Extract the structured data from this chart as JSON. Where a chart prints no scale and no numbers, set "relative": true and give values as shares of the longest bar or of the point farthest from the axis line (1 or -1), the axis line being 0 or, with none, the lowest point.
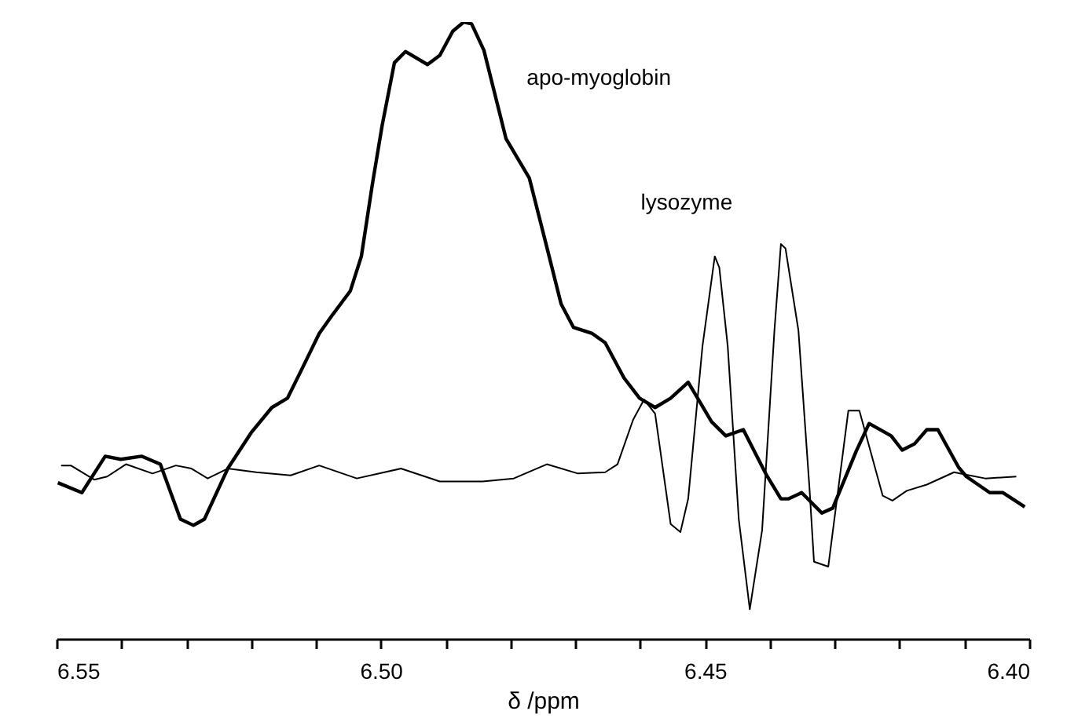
{
  "chart_data": {
    "type": "line",
    "xlabel": "δ /ppm",
    "relative": true,
    "grid": false,
    "xlim": [
      6.55,
      6.4
    ],
    "xticks": [
      {
        "value": 6.55,
        "label": "6.55"
      },
      {
        "value": 6.54,
        "label": null
      },
      {
        "value": 6.53,
        "label": null
      },
      {
        "value": 6.52,
        "label": null
      },
      {
        "value": 6.51,
        "label": null
      },
      {
        "value": 6.5,
        "label": "6.50"
      },
      {
        "value": 6.49,
        "label": null
      },
      {
        "value": 6.48,
        "label": null
      },
      {
        "value": 6.47,
        "label": null
      },
      {
        "value": 6.46,
        "label": null
      },
      {
        "value": 6.45,
        "label": "6.45"
      },
      {
        "value": 6.44,
        "label": null
      },
      {
        "value": 6.43,
        "label": null
      },
      {
        "value": 6.42,
        "label": null
      },
      {
        "value": 6.41,
        "label": null
      },
      {
        "value": 6.4,
        "label": "6.40"
      }
    ],
    "series": [
      {
        "name": "apo-myoglobin",
        "color": "#000000",
        "x": [
          6.5498,
          6.5461,
          6.5425,
          6.5401,
          6.5369,
          6.534,
          6.5309,
          6.5289,
          6.5272,
          6.5236,
          6.52,
          6.5168,
          6.5144,
          6.512,
          6.5095,
          6.5074,
          6.5047,
          6.503,
          6.5013,
          6.4998,
          6.4979,
          6.4962,
          6.4928,
          6.4909,
          6.4889,
          6.4872,
          6.486,
          6.4841,
          6.4807,
          6.4771,
          6.4744,
          6.4722,
          6.4703,
          6.4674,
          6.4654,
          6.4625,
          6.4601,
          6.4577,
          6.4553,
          6.4526,
          6.449,
          6.4468,
          6.4441,
          6.4405,
          6.4383,
          6.4371,
          6.4351,
          6.432,
          6.4303,
          6.4267,
          6.4247,
          6.4213,
          6.4196,
          6.4177,
          6.4158,
          6.4141,
          6.4109,
          6.4097,
          6.4061,
          6.4041,
          6.4007
        ],
        "values": [
          0.253,
          0.237,
          0.296,
          0.291,
          0.296,
          0.283,
          0.194,
          0.184,
          0.194,
          0.276,
          0.334,
          0.375,
          0.39,
          0.441,
          0.495,
          0.526,
          0.564,
          0.62,
          0.737,
          0.832,
          0.934,
          0.952,
          0.931,
          0.946,
          0.985,
          1,
          0.997,
          0.954,
          0.811,
          0.747,
          0.635,
          0.543,
          0.505,
          0.495,
          0.48,
          0.423,
          0.39,
          0.375,
          0.39,
          0.416,
          0.352,
          0.329,
          0.339,
          0.265,
          0.227,
          0.227,
          0.237,
          0.204,
          0.212,
          0.304,
          0.349,
          0.329,
          0.306,
          0.316,
          0.339,
          0.339,
          0.278,
          0.263,
          0.237,
          0.237,
          0.214
        ]
      },
      {
        "name": "lysozyme",
        "color": "#000000",
        "x": [
          6.5493,
          6.5478,
          6.5442,
          6.5422,
          6.5393,
          6.5352,
          6.5316,
          6.5292,
          6.5267,
          6.5236,
          6.5192,
          6.5139,
          6.5095,
          6.5037,
          6.4969,
          6.4909,
          6.4843,
          6.4795,
          6.4744,
          6.4696,
          6.4654,
          6.4635,
          6.4611,
          6.4594,
          6.4577,
          6.4553,
          6.4538,
          6.4526,
          6.4504,
          6.4485,
          6.4478,
          6.4465,
          6.4448,
          6.4431,
          6.4412,
          6.4393,
          6.4383,
          6.4376,
          6.4356,
          6.4339,
          6.4332,
          6.431,
          6.4279,
          6.4262,
          6.4226,
          6.4211,
          6.4189,
          6.4158,
          6.4116,
          6.4092,
          6.4068,
          6.402
        ],
        "values": [
          0.281,
          0.281,
          0.258,
          0.263,
          0.283,
          0.268,
          0.281,
          0.276,
          0.26,
          0.276,
          0.27,
          0.265,
          0.281,
          0.26,
          0.276,
          0.255,
          0.255,
          0.26,
          0.283,
          0.268,
          0.27,
          0.283,
          0.355,
          0.388,
          0.365,
          0.186,
          0.173,
          0.227,
          0.474,
          0.62,
          0.602,
          0.474,
          0.194,
          0.048,
          0.176,
          0.5,
          0.64,
          0.633,
          0.5,
          0.245,
          0.125,
          0.117,
          0.37,
          0.37,
          0.232,
          0.224,
          0.24,
          0.25,
          0.27,
          0.265,
          0.26,
          0.263
        ]
      }
    ]
  }
}
